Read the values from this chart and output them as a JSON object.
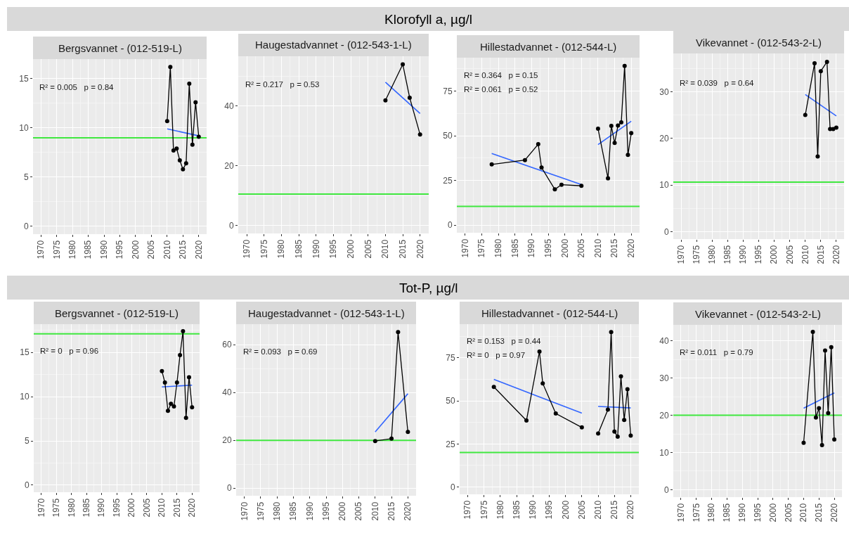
{
  "chart_data": [
    {
      "type": "line",
      "title": "Bergsvannet - (012-519-L)",
      "xlim": [
        1967.5,
        2022.5
      ],
      "xticks": [
        1970,
        1975,
        1980,
        1985,
        1990,
        1995,
        2000,
        2005,
        2010,
        2015,
        2020
      ],
      "ylim": [
        -0.8,
        17
      ],
      "yticks": [
        0,
        5,
        10,
        15
      ],
      "grid": true,
      "marker": "circle",
      "annotations": [
        "R² = 0.005   p = 0.84"
      ],
      "ref_lines": [
        {
          "axis": "y",
          "value": 9,
          "color": "#40e840"
        }
      ],
      "series": [
        {
          "color": "#000000",
          "x": [
            2010,
            2011,
            2012,
            2013,
            2014,
            2015,
            2016,
            2017,
            2018,
            2019,
            2020
          ],
          "values": [
            10.7,
            16.2,
            7.7,
            7.9,
            6.7,
            5.8,
            6.4,
            14.5,
            8.3,
            12.6,
            9.1
          ]
        },
        {
          "type": "line",
          "marker": "none",
          "color": "#3366ff",
          "x": [
            2010,
            2020
          ],
          "values": [
            9.9,
            9.2
          ]
        }
      ]
    },
    {
      "type": "line",
      "subtitle": "Klorofyll a, µg/l",
      "title": "Haugestadvannet - (012-543-1-L)",
      "xlim": [
        1967.5,
        2022.5
      ],
      "xticks": [
        1970,
        1975,
        1980,
        1985,
        1990,
        1995,
        2000,
        2005,
        2010,
        2015,
        2020
      ],
      "ylim": [
        -2.7,
        56.7
      ],
      "yticks": [
        0,
        20,
        40
      ],
      "grid": true,
      "marker": "circle",
      "annotations": [
        "R² = 0.217   p = 0.53"
      ],
      "ref_lines": [
        {
          "axis": "y",
          "value": 10.5,
          "color": "#40e840"
        }
      ],
      "series": [
        {
          "color": "#000000",
          "x": [
            2010,
            2015,
            2017,
            2020
          ],
          "values": [
            41.9,
            54.0,
            42.8,
            30.5
          ]
        },
        {
          "type": "line",
          "marker": "none",
          "color": "#3366ff",
          "x": [
            2010,
            2020
          ],
          "values": [
            48.0,
            37.5
          ]
        }
      ]
    },
    {
      "type": "line",
      "title": "Hillestadvannet - (012-544-L)",
      "xlim": [
        1967.5,
        2022.5
      ],
      "xticks": [
        1970,
        1975,
        1980,
        1985,
        1990,
        1995,
        2000,
        2005,
        2010,
        2015,
        2020
      ],
      "ylim": [
        -4.3,
        93.8
      ],
      "yticks": [
        0,
        25,
        50,
        75
      ],
      "grid": true,
      "marker": "circle",
      "annotations": [
        "R² = 0.364   p = 0.15",
        "R² = 0.061   p = 0.52"
      ],
      "ref_lines": [
        {
          "axis": "y",
          "value": 10.5,
          "color": "#40e840"
        }
      ],
      "series": [
        {
          "color": "#000000",
          "x": [
            1978,
            1988,
            1992,
            1993,
            1997,
            1999,
            2005,
            2007,
            2010,
            2013,
            2014,
            2015,
            2016,
            2017,
            2018,
            2019,
            2020
          ],
          "values": [
            34.0,
            36.4,
            45.3,
            32.2,
            20.0,
            22.6,
            22.0,
            null,
            54.0,
            26.2,
            55.6,
            46.0,
            55.8,
            57.6,
            89.2,
            39.3,
            51.5
          ]
        },
        {
          "type": "line",
          "marker": "none",
          "color": "#3366ff",
          "x": [
            1978,
            2005
          ],
          "values": [
            40.1,
            22.7
          ]
        },
        {
          "type": "line",
          "marker": "none",
          "color": "#3366ff",
          "x": [
            2010,
            2020
          ],
          "values": [
            45.1,
            58.2
          ]
        }
      ]
    },
    {
      "type": "line",
      "title": "Vikevannet - (012-543-2-L)",
      "xlim": [
        1967.5,
        2022.5
      ],
      "xticks": [
        1970,
        1975,
        1980,
        1985,
        1990,
        1995,
        2000,
        2005,
        2010,
        2015,
        2020
      ],
      "ylim": [
        -1.6,
        38.2
      ],
      "yticks": [
        0,
        10,
        20,
        30
      ],
      "grid": true,
      "marker": "circle",
      "annotations": [
        "R² = 0.039   p = 0.64"
      ],
      "ref_lines": [
        {
          "axis": "y",
          "value": 10.6,
          "color": "#40e840"
        }
      ],
      "series": [
        {
          "color": "#000000",
          "x": [
            2010,
            2013,
            2014,
            2015,
            2017,
            2018,
            2019,
            2020
          ],
          "values": [
            25.0,
            36.1,
            16.1,
            34.4,
            36.4,
            22.0,
            22.0,
            22.3
          ]
        },
        {
          "type": "line",
          "marker": "none",
          "color": "#3366ff",
          "x": [
            2010,
            2020
          ],
          "values": [
            29.4,
            24.8
          ]
        }
      ]
    },
    {
      "type": "line",
      "title": "Bergsvannet - (012-519-L)",
      "xlim": [
        1967.5,
        2022.5
      ],
      "xticks": [
        1970,
        1975,
        1980,
        1985,
        1990,
        1995,
        2000,
        2005,
        2010,
        2015,
        2020
      ],
      "ylim": [
        -0.8,
        18.2
      ],
      "yticks": [
        0,
        5,
        10,
        15
      ],
      "grid": true,
      "marker": "circle",
      "annotations": [
        "R² = 0   p = 0.96"
      ],
      "ref_lines": [
        {
          "axis": "y",
          "value": 17.1,
          "color": "#40e840"
        }
      ],
      "series": [
        {
          "color": "#000000",
          "x": [
            2010,
            2011,
            2012,
            2013,
            2014,
            2015,
            2016,
            2017,
            2018,
            2019,
            2020
          ],
          "values": [
            12.9,
            11.6,
            8.4,
            9.2,
            8.9,
            11.6,
            14.7,
            17.4,
            7.6,
            12.2,
            8.8
          ]
        },
        {
          "type": "line",
          "marker": "none",
          "color": "#3366ff",
          "x": [
            2010,
            2020
          ],
          "values": [
            11.1,
            11.3
          ]
        }
      ]
    },
    {
      "type": "line",
      "subtitle": "Tot-P, µg/l",
      "title": "Haugestadvannet - (012-543-1-L)",
      "xlim": [
        1967.5,
        2022.5
      ],
      "xticks": [
        1970,
        1975,
        1980,
        1985,
        1990,
        1995,
        2000,
        2005,
        2010,
        2015,
        2020
      ],
      "ylim": [
        -3.2,
        68.6
      ],
      "yticks": [
        0,
        20,
        40,
        60
      ],
      "grid": true,
      "marker": "circle",
      "annotations": [
        "R² = 0.093   p = 0.69"
      ],
      "ref_lines": [
        {
          "axis": "y",
          "value": 20,
          "color": "#40e840"
        }
      ],
      "series": [
        {
          "color": "#000000",
          "x": [
            2010,
            2015,
            2017,
            2020
          ],
          "values": [
            19.7,
            20.7,
            65.3,
            23.5
          ]
        },
        {
          "type": "line",
          "marker": "none",
          "color": "#3366ff",
          "x": [
            2010,
            2020
          ],
          "values": [
            23.5,
            39.5
          ]
        }
      ]
    },
    {
      "type": "line",
      "title": "Hillestadvannet - (012-544-L)",
      "xlim": [
        1967.5,
        2022.5
      ],
      "xticks": [
        1970,
        1975,
        1980,
        1985,
        1990,
        1995,
        2000,
        2005,
        2010,
        2015,
        2020
      ],
      "ylim": [
        -4.3,
        94.6
      ],
      "yticks": [
        0,
        25,
        50,
        75
      ],
      "grid": true,
      "marker": "circle",
      "annotations": [
        "R² = 0.153   p = 0.44",
        "R² = 0   p = 0.97"
      ],
      "ref_lines": [
        {
          "axis": "y",
          "value": 20,
          "color": "#40e840"
        }
      ],
      "series": [
        {
          "color": "#000000",
          "x": [
            1978,
            1988,
            1992,
            1993,
            1997,
            2005,
            2007,
            2010,
            2013,
            2014,
            2015,
            2016,
            2017,
            2018,
            2019,
            2020
          ],
          "values": [
            58.1,
            38.6,
            78.7,
            60.2,
            42.7,
            34.6,
            null,
            31.0,
            44.9,
            90.0,
            32.2,
            29.2,
            64.3,
            38.9,
            56.8,
            29.8
          ]
        },
        {
          "type": "line",
          "marker": "none",
          "color": "#3366ff",
          "x": [
            1978,
            2005
          ],
          "values": [
            62.5,
            42.9
          ]
        },
        {
          "type": "line",
          "marker": "none",
          "color": "#3366ff",
          "x": [
            2010,
            2020
          ],
          "values": [
            46.8,
            45.9
          ]
        }
      ]
    },
    {
      "type": "line",
      "title": "Vikevannet - (012-543-2-L)",
      "xlim": [
        1967.5,
        2022.5
      ],
      "xticks": [
        1970,
        1975,
        1980,
        1985,
        1990,
        1995,
        2000,
        2005,
        2010,
        2015,
        2020
      ],
      "ylim": [
        -2.0,
        44.3
      ],
      "yticks": [
        0,
        10,
        20,
        30,
        40
      ],
      "grid": true,
      "marker": "circle",
      "annotations": [
        "R² = 0.011   p = 0.79"
      ],
      "ref_lines": [
        {
          "axis": "y",
          "value": 20,
          "color": "#40e840"
        }
      ],
      "series": [
        {
          "color": "#000000",
          "x": [
            2010,
            2013,
            2014,
            2015,
            2016,
            2017,
            2018,
            2019,
            2020
          ],
          "values": [
            12.6,
            42.4,
            19.4,
            21.9,
            12.0,
            37.4,
            20.6,
            38.3,
            13.5
          ]
        },
        {
          "type": "line",
          "marker": "none",
          "color": "#3366ff",
          "x": [
            2010,
            2020
          ],
          "values": [
            21.9,
            26.0
          ]
        }
      ]
    }
  ]
}
